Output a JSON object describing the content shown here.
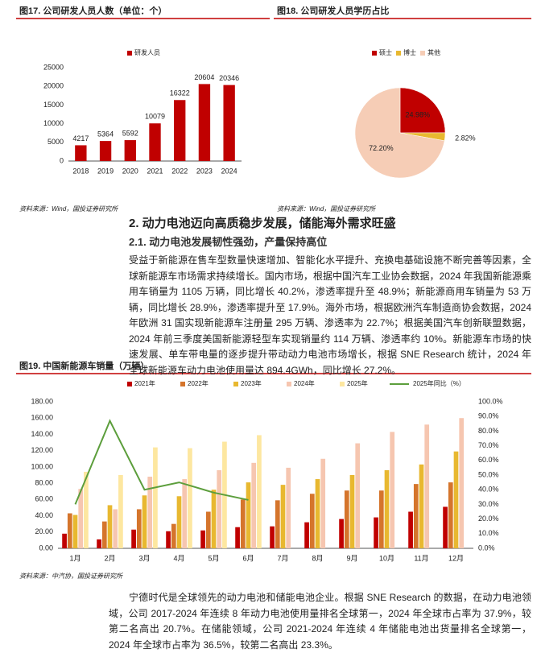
{
  "document": {
    "heading": "2. 动力电池迈向高质稳步发展，储能海外需求旺盛",
    "subheading": "2.1. 动力电池发展韧性强劲，产量保持高位",
    "paragraphs": [
      "受益于新能源在售车型数量快速增加、智能化水平提升、充换电基础设施不断完善等因素，全球新能源车市场需求持续增长。国内市场，根据中国汽车工业协会数据，2024 年我国新能源乘用车销量为 1105 万辆，同比增长 40.2%，渗透率提升至 48.9%；新能源商用车销量为 53 万辆，同比增长 28.9%，渗透率提升至 17.9%。海外市场，根据欧洲汽车制造商协会数据，2024 年欧洲 31 国实现新能源车注册量 295 万辆、渗透率为 22.7%；根据美国汽车创新联盟数据，2024 年前三季度美国新能源轻型车实现销量约 114 万辆、渗透率约 10%。新能源车市场的快速发展、单车带电量的逐步提升带动动力电池市场增长，根据 SNE Research 统计，2024 年全球新能源车动力电池使用量达 894.4GWh，同比增长 27.2%。",
      "宁德时代是全球领先的动力电池和储能电池企业。根据 SNE Research 的数据，在动力电池领域，公司 2017-2024 年连续 8 年动力电池使用量排名全球第一，2024 年全球市占率为 37.9%，较第二名高出 20.7%。在储能领域，公司 2021-2024 年连续 4 年储能电池出货量排名全球第一，2024 年全球市占率为 36.5%，较第二名高出 23.3%。"
    ]
  },
  "chart_data": [
    {
      "type": "bar",
      "title": "图17. 公司研发人员人数（单位：个）",
      "source": "资料来源：Wind，国投证券研究所",
      "categories": [
        "2018",
        "2019",
        "2020",
        "2021",
        "2022",
        "2023",
        "2024"
      ],
      "series": [
        {
          "name": "研发人员",
          "color": "#c00000",
          "values": [
            4217,
            5364,
            5592,
            10079,
            16322,
            20604,
            20346
          ]
        }
      ],
      "ylim": [
        0,
        25000
      ],
      "yticks": [
        0,
        5000,
        10000,
        15000,
        20000,
        25000
      ],
      "data_labels": true,
      "grid": false
    },
    {
      "type": "pie",
      "title": "图18. 公司研发人员学历占比",
      "source": "资料来源：Wind，国投证券研究所",
      "categories": [
        "硕士",
        "博士",
        "其他"
      ],
      "values": [
        24.98,
        2.82,
        72.2
      ],
      "value_labels": [
        "24.98%",
        "2.82%",
        "72.20%"
      ],
      "colors": [
        "#c00000",
        "#e8b830",
        "#f6cdb6"
      ]
    },
    {
      "type": "bar",
      "title": "图19. 中国新能源车销量（万辆）",
      "source": "资料来源：中汽协，国投证券研究所",
      "categories": [
        "1月",
        "2月",
        "3月",
        "4月",
        "5月",
        "6月",
        "7月",
        "8月",
        "9月",
        "10月",
        "11月",
        "12月"
      ],
      "series": [
        {
          "name": "2021年",
          "color": "#c00000",
          "values": [
            18,
            11,
            23,
            21,
            22,
            26,
            27,
            32,
            36,
            38,
            45,
            51
          ]
        },
        {
          "name": "2022年",
          "color": "#d5752c",
          "values": [
            43,
            33,
            48,
            30,
            45,
            60,
            59,
            67,
            71,
            71,
            79,
            81
          ]
        },
        {
          "name": "2023年",
          "color": "#e8b830",
          "values": [
            41,
            53,
            65,
            64,
            72,
            81,
            78,
            85,
            90,
            96,
            103,
            119
          ]
        },
        {
          "name": "2024年",
          "color": "#f6c6b0",
          "values": [
            73,
            48,
            88,
            85,
            96,
            105,
            99,
            110,
            129,
            143,
            152,
            160
          ]
        },
        {
          "name": "2025年",
          "color": "#fde7a0",
          "values": [
            94,
            90,
            124,
            123,
            131,
            139,
            null,
            null,
            null,
            null,
            null,
            null
          ]
        },
        {
          "name": "2025年同比（%）",
          "color": "#5c9e3c",
          "axis": "y2",
          "values": [
            30,
            87,
            40,
            45,
            38,
            33,
            null,
            null,
            null,
            null,
            null,
            null
          ]
        }
      ],
      "ylim": [
        0,
        180
      ],
      "yticks": [
        {
          "value": 0,
          "label": "0.00"
        },
        {
          "value": 20,
          "label": "20.00"
        },
        {
          "value": 40,
          "label": "40.00"
        },
        {
          "value": 60,
          "label": "60.00"
        },
        {
          "value": 80,
          "label": "80.00"
        },
        {
          "value": 100,
          "label": "100.00"
        },
        {
          "value": 120,
          "label": "120.00"
        },
        {
          "value": 140,
          "label": "140.00"
        },
        {
          "value": 160,
          "label": "160.00"
        },
        {
          "value": 180,
          "label": "180.00"
        }
      ],
      "y2lim": [
        0,
        100
      ],
      "y2ticks": [
        {
          "value": 0,
          "label": "0.0%"
        },
        {
          "value": 10,
          "label": "10.0%"
        },
        {
          "value": 20,
          "label": "20.0%"
        },
        {
          "value": 30,
          "label": "30.0%"
        },
        {
          "value": 40,
          "label": "40.0%"
        },
        {
          "value": 50,
          "label": "50.0%"
        },
        {
          "value": 60,
          "label": "60.0%"
        },
        {
          "value": 70,
          "label": "70.0%"
        },
        {
          "value": 80,
          "label": "80.0%"
        },
        {
          "value": 90,
          "label": "90.0%"
        },
        {
          "value": 100,
          "label": "100.0%"
        }
      ],
      "data_labels": false,
      "grid": false
    }
  ]
}
